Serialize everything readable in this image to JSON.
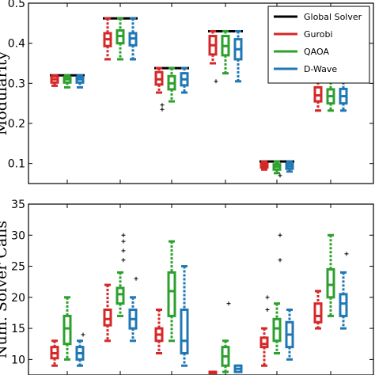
{
  "figure": {
    "legend": [
      {
        "name": "Global Solver",
        "color": "#000000"
      },
      {
        "name": "Gurobi",
        "color": "#d62728"
      },
      {
        "name": "QAOA",
        "color": "#2ca02c"
      },
      {
        "name": "D-Wave",
        "color": "#1f77b4"
      }
    ]
  },
  "chart_data": [
    {
      "type": "box",
      "ylabel": "Modularity",
      "ylim": [
        0.05,
        0.5
      ],
      "yticks": [
        0.1,
        0.2,
        0.3,
        0.4,
        0.5
      ],
      "grid": false,
      "legend_position": "top-right",
      "global_solver": [
        0.32,
        0.462,
        0.338,
        0.43,
        0.105,
        0.313
      ],
      "series": [
        {
          "name": "Gurobi",
          "color": "#d62728",
          "groups": [
            {
              "whislo": 0.294,
              "q1": 0.302,
              "med": 0.31,
              "q3": 0.317,
              "whishi": 0.32,
              "fliers": []
            },
            {
              "whislo": 0.36,
              "q1": 0.393,
              "med": 0.41,
              "q3": 0.425,
              "whishi": 0.462,
              "fliers": []
            },
            {
              "whislo": 0.277,
              "q1": 0.297,
              "med": 0.31,
              "q3": 0.328,
              "whishi": 0.338,
              "fliers": [
                0.235,
                0.246
              ]
            },
            {
              "whislo": 0.35,
              "q1": 0.372,
              "med": 0.395,
              "q3": 0.418,
              "whishi": 0.43,
              "fliers": [
                0.305
              ]
            },
            {
              "whislo": 0.085,
              "q1": 0.09,
              "med": 0.095,
              "q3": 0.1,
              "whishi": 0.105,
              "fliers": []
            },
            {
              "whislo": 0.232,
              "q1": 0.255,
              "med": 0.27,
              "q3": 0.29,
              "whishi": 0.313,
              "fliers": []
            }
          ]
        },
        {
          "name": "QAOA",
          "color": "#2ca02c",
          "groups": [
            {
              "whislo": 0.29,
              "q1": 0.302,
              "med": 0.31,
              "q3": 0.316,
              "whishi": 0.32,
              "fliers": []
            },
            {
              "whislo": 0.36,
              "q1": 0.4,
              "med": 0.418,
              "q3": 0.432,
              "whishi": 0.462,
              "fliers": []
            },
            {
              "whislo": 0.255,
              "q1": 0.285,
              "med": 0.3,
              "q3": 0.318,
              "whishi": 0.338,
              "fliers": []
            },
            {
              "whislo": 0.325,
              "q1": 0.37,
              "med": 0.393,
              "q3": 0.418,
              "whishi": 0.43,
              "fliers": []
            },
            {
              "whislo": 0.076,
              "q1": 0.085,
              "med": 0.092,
              "q3": 0.098,
              "whishi": 0.105,
              "fliers": [
                0.07
              ]
            },
            {
              "whislo": 0.232,
              "q1": 0.25,
              "med": 0.268,
              "q3": 0.285,
              "whishi": 0.313,
              "fliers": []
            }
          ]
        },
        {
          "name": "D-Wave",
          "color": "#1f77b4",
          "groups": [
            {
              "whislo": 0.29,
              "q1": 0.302,
              "med": 0.31,
              "q3": 0.316,
              "whishi": 0.32,
              "fliers": []
            },
            {
              "whislo": 0.36,
              "q1": 0.395,
              "med": 0.412,
              "q3": 0.425,
              "whishi": 0.462,
              "fliers": []
            },
            {
              "whislo": 0.277,
              "q1": 0.295,
              "med": 0.31,
              "q3": 0.325,
              "whishi": 0.338,
              "fliers": []
            },
            {
              "whislo": 0.305,
              "q1": 0.36,
              "med": 0.385,
              "q3": 0.41,
              "whishi": 0.43,
              "fliers": []
            },
            {
              "whislo": 0.08,
              "q1": 0.087,
              "med": 0.093,
              "q3": 0.099,
              "whishi": 0.105,
              "fliers": []
            },
            {
              "whislo": 0.232,
              "q1": 0.25,
              "med": 0.268,
              "q3": 0.286,
              "whishi": 0.313,
              "fliers": []
            }
          ]
        }
      ]
    },
    {
      "type": "box",
      "ylabel": "Num. Solver Calls",
      "ylim": [
        7.5,
        35
      ],
      "yticks": [
        10,
        15,
        20,
        25,
        30,
        35
      ],
      "grid": false,
      "series": [
        {
          "name": "Gurobi",
          "color": "#d62728",
          "groups": [
            {
              "whislo": 9,
              "q1": 10.2,
              "med": 11,
              "q3": 12,
              "whishi": 13,
              "fliers": []
            },
            {
              "whislo": 13,
              "q1": 15.5,
              "med": 16.5,
              "q3": 18,
              "whishi": 22,
              "fliers": []
            },
            {
              "whislo": 11,
              "q1": 13,
              "med": 14,
              "q3": 15,
              "whishi": 18,
              "fliers": []
            },
            {
              "whislo": 8,
              "q1": 8,
              "med": 8,
              "q3": 8,
              "whishi": 8,
              "fliers": []
            },
            {
              "whislo": 9,
              "q1": 12,
              "med": 12.5,
              "q3": 13.5,
              "whishi": 15,
              "fliers": [
                18,
                20
              ]
            },
            {
              "whislo": 15,
              "q1": 16,
              "med": 17,
              "q3": 19,
              "whishi": 21,
              "fliers": []
            }
          ]
        },
        {
          "name": "QAOA",
          "color": "#2ca02c",
          "groups": [
            {
              "whislo": 10,
              "q1": 12.5,
              "med": 15,
              "q3": 17,
              "whishi": 20,
              "fliers": []
            },
            {
              "whislo": 17,
              "q1": 19,
              "med": 20.5,
              "q3": 21.5,
              "whishi": 24,
              "fliers": [
                26,
                27.5,
                29,
                30
              ]
            },
            {
              "whislo": 13,
              "q1": 17,
              "med": 21,
              "q3": 24,
              "whishi": 29,
              "fliers": []
            },
            {
              "whislo": 8,
              "q1": 9,
              "med": 10.5,
              "q3": 12,
              "whishi": 13,
              "fliers": [
                19
              ]
            },
            {
              "whislo": 11,
              "q1": 13,
              "med": 15,
              "q3": 16.5,
              "whishi": 19,
              "fliers": [
                26,
                30
              ]
            },
            {
              "whislo": 17,
              "q1": 20,
              "med": 22,
              "q3": 24.5,
              "whishi": 30,
              "fliers": []
            }
          ]
        },
        {
          "name": "D-Wave",
          "color": "#1f77b4",
          "groups": [
            {
              "whislo": 9,
              "q1": 10,
              "med": 11,
              "q3": 12,
              "whishi": 13,
              "fliers": [
                14
              ]
            },
            {
              "whislo": 13,
              "q1": 15,
              "med": 16.5,
              "q3": 18,
              "whishi": 20,
              "fliers": [
                23
              ]
            },
            {
              "whislo": 9,
              "q1": 11,
              "med": 13,
              "q3": 18,
              "whishi": 25,
              "fliers": []
            },
            {
              "whislo": 8,
              "q1": 8,
              "med": 8.5,
              "q3": 9,
              "whishi": 9,
              "fliers": []
            },
            {
              "whislo": 10,
              "q1": 12,
              "med": 14,
              "q3": 16,
              "whishi": 18,
              "fliers": []
            },
            {
              "whislo": 15,
              "q1": 17,
              "med": 19,
              "q3": 20.5,
              "whishi": 24,
              "fliers": [
                27
              ]
            }
          ]
        }
      ]
    }
  ]
}
